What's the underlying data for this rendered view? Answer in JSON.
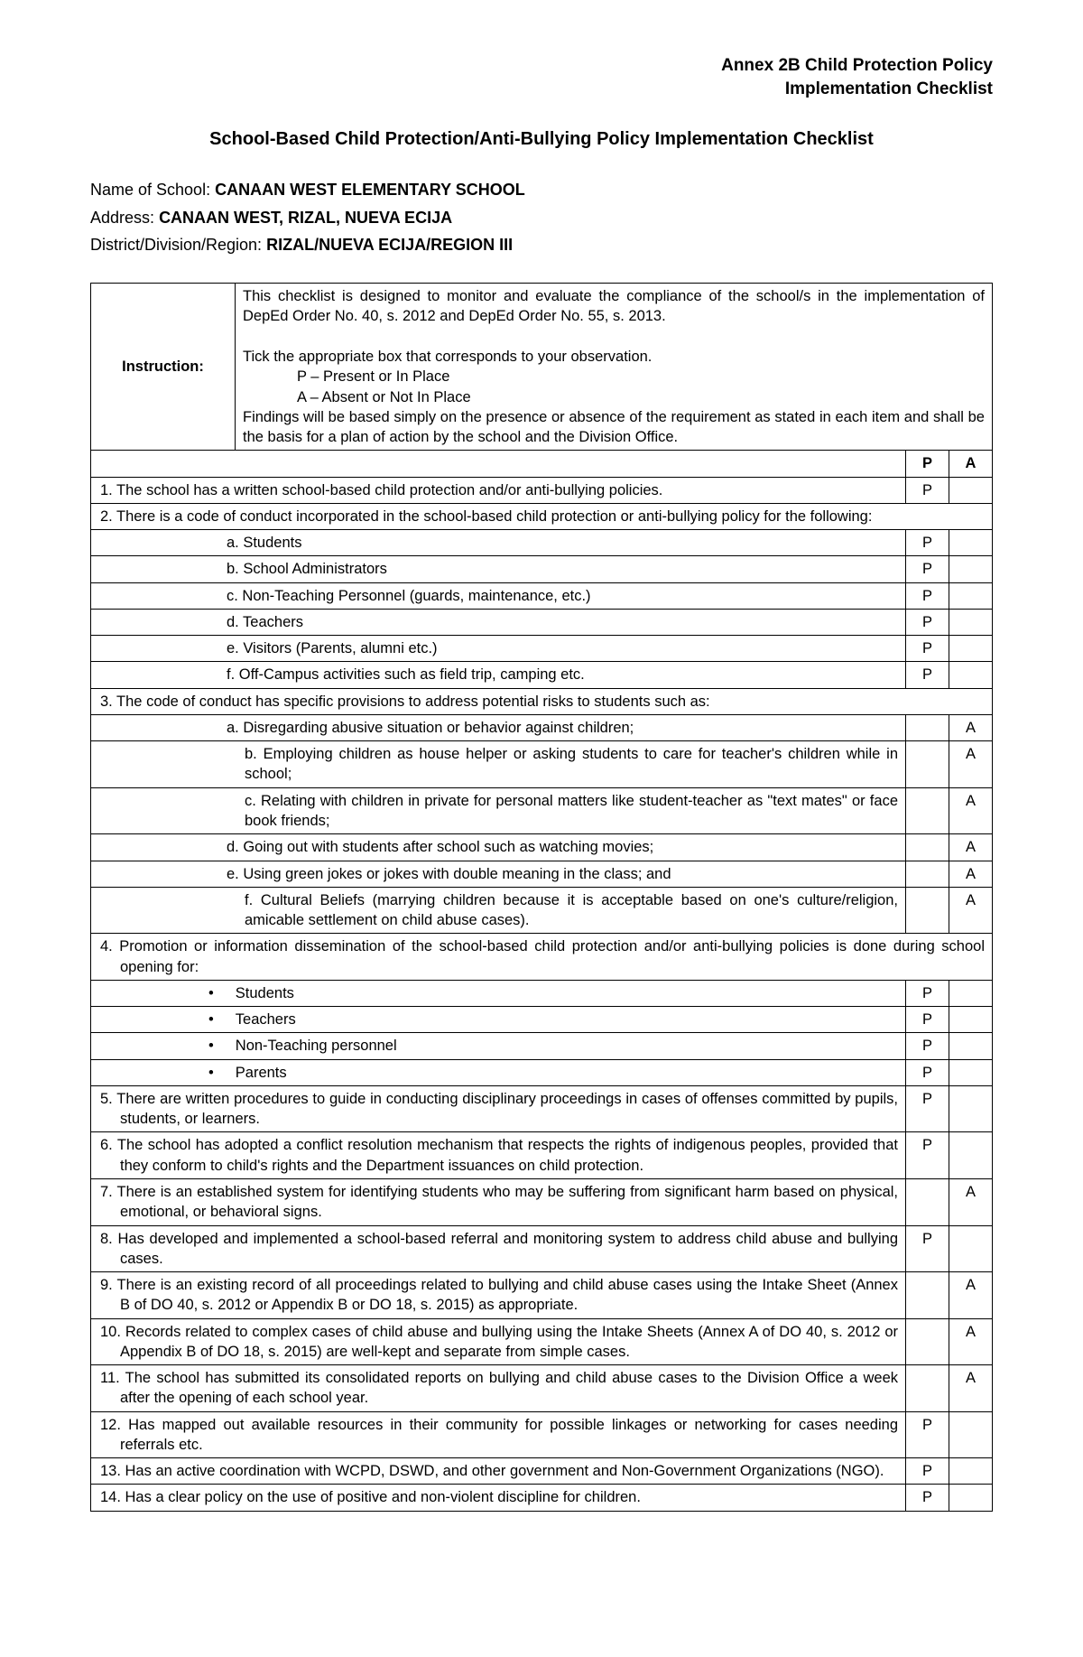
{
  "annex": {
    "line1": "Annex 2B Child Protection Policy",
    "line2": "Implementation Checklist"
  },
  "title": "School-Based Child Protection/Anti-Bullying Policy Implementation Checklist",
  "school": {
    "name_label": "Name of School:",
    "name": "CANAAN WEST ELEMENTARY SCHOOL",
    "addr_label": "Address:",
    "addr": "CANAAN WEST, RIZAL, NUEVA ECIJA",
    "ddr_label": "District/Division/Region:",
    "ddr": "RIZAL/NUEVA ECIJA/REGION III"
  },
  "instruction": {
    "label": "Instruction:",
    "p1": "This checklist is designed to monitor and evaluate the compliance of the school/s in the implementation of DepEd Order No. 40, s. 2012 and DepEd Order No. 55, s. 2013.",
    "p2": "Tick the appropriate box that corresponds to your observation.",
    "p_def": "P – Present or In Place",
    "a_def": "A – Absent or Not In Place",
    "p3": "Findings will be based simply on the presence or absence of the requirement as stated in each item and shall be the basis for a plan of action by the school and the Division Office."
  },
  "headers": {
    "p": "P",
    "a": "A"
  },
  "rows": [
    {
      "text": "1. The school has a written school-based child protection and/or anti-bullying policies.",
      "cls": "item-main hang",
      "p": "P",
      "a": ""
    },
    {
      "text": "2. There is a code of conduct incorporated in the school-based child protection or anti-bullying policy for the following:",
      "cls": "item-main hang",
      "p": "",
      "a": "",
      "span": true
    },
    {
      "text": "a. Students",
      "cls": "sub",
      "p": "P",
      "a": ""
    },
    {
      "text": "b. School Administrators",
      "cls": "sub",
      "p": "P",
      "a": ""
    },
    {
      "text": "c. Non-Teaching Personnel (guards, maintenance, etc.)",
      "cls": "sub",
      "p": "P",
      "a": ""
    },
    {
      "text": "d. Teachers",
      "cls": "sub",
      "p": "P",
      "a": ""
    },
    {
      "text": "e. Visitors (Parents, alumni etc.)",
      "cls": "sub",
      "p": "P",
      "a": ""
    },
    {
      "text": "f.  Off-Campus activities such as field trip, camping etc.",
      "cls": "sub",
      "p": "P",
      "a": ""
    },
    {
      "text": "3.  The code of conduct has specific provisions to address potential risks to students such as:",
      "cls": "item-main hang",
      "p": "",
      "a": "",
      "span": true
    },
    {
      "text": "a. Disregarding abusive situation or behavior against children;",
      "cls": "sub",
      "p": "",
      "a": "A"
    },
    {
      "text": "b. Employing children as house helper or asking students to care for teacher's children while in school;",
      "cls": "sub2",
      "p": "",
      "a": "A"
    },
    {
      "text": "c.  Relating with children in private for personal matters like student-teacher  as \"text mates\" or face book friends;",
      "cls": "sub2",
      "p": "",
      "a": "A"
    },
    {
      "text": "d. Going out with students after school such as watching movies;",
      "cls": "sub",
      "p": "",
      "a": "A"
    },
    {
      "text": "e.  Using green jokes or jokes with double meaning in the class; and",
      "cls": "sub",
      "p": "",
      "a": "A"
    },
    {
      "text": "f. Cultural Beliefs (marrying children because it is acceptable based on one's culture/religion, amicable settlement on child abuse cases).",
      "cls": "sub2",
      "p": "",
      "a": "A"
    },
    {
      "text": "4. Promotion or information dissemination of the school-based child protection and/or anti-bullying policies is done during school opening for:",
      "cls": "item-main hang",
      "p": "",
      "a": "",
      "span": true
    },
    {
      "text": "Students",
      "cls": "bullet",
      "p": "P",
      "a": ""
    },
    {
      "text": "Teachers",
      "cls": "bullet",
      "p": "P",
      "a": ""
    },
    {
      "text": "Non-Teaching personnel",
      "cls": "bullet",
      "p": "P",
      "a": ""
    },
    {
      "text": "Parents",
      "cls": "bullet",
      "p": "P",
      "a": ""
    },
    {
      "text": "5. There are written procedures to guide in conducting disciplinary proceedings in cases of offenses committed by pupils, students, or learners.",
      "cls": "item-main hang",
      "p": "P",
      "a": ""
    },
    {
      "text": "6. The school has adopted a conflict resolution mechanism that respects the rights of indigenous peoples, provided that they conform to child's rights and the Department issuances on child protection.",
      "cls": "item-main hang",
      "p": "P",
      "a": ""
    },
    {
      "text": "7. There is an established system for identifying students who may be suffering from significant harm based on physical, emotional, or behavioral signs.",
      "cls": "item-main hang",
      "p": "",
      "a": "A"
    },
    {
      "text": "8. Has developed and implemented a school-based referral and monitoring system to address child abuse and bullying cases.",
      "cls": "item-main hang",
      "p": "P",
      "a": ""
    },
    {
      "text": "9. There is an existing record of all proceedings related to bullying and child abuse cases using the Intake Sheet (Annex B of DO 40, s. 2012 or Appendix B or DO 18, s. 2015) as appropriate.",
      "cls": "item-main hang",
      "p": "",
      "a": "A"
    },
    {
      "text": "10. Records related to complex cases of child abuse and bullying using the Intake Sheets (Annex A of DO 40, s. 2012 or Appendix B of DO 18, s. 2015) are well-kept and separate from simple cases.",
      "cls": "item-main hang",
      "p": "",
      "a": "A"
    },
    {
      "text": "11. The school has submitted its consolidated reports on bullying and child abuse cases to the Division Office a week after the opening of each school year.",
      "cls": "item-main hang",
      "p": "",
      "a": "A"
    },
    {
      "text": "12. Has mapped out available resources in their community for possible linkages or networking for cases needing referrals etc.",
      "cls": "item-main hang",
      "p": "P",
      "a": ""
    },
    {
      "text": "13. Has an active coordination with WCPD, DSWD, and other government and Non-Government Organizations (NGO).",
      "cls": "item-main hang",
      "p": "P",
      "a": ""
    },
    {
      "text": "14. Has a clear policy on the use of positive and non-violent discipline for children.",
      "cls": "item-main",
      "p": "P",
      "a": ""
    }
  ]
}
